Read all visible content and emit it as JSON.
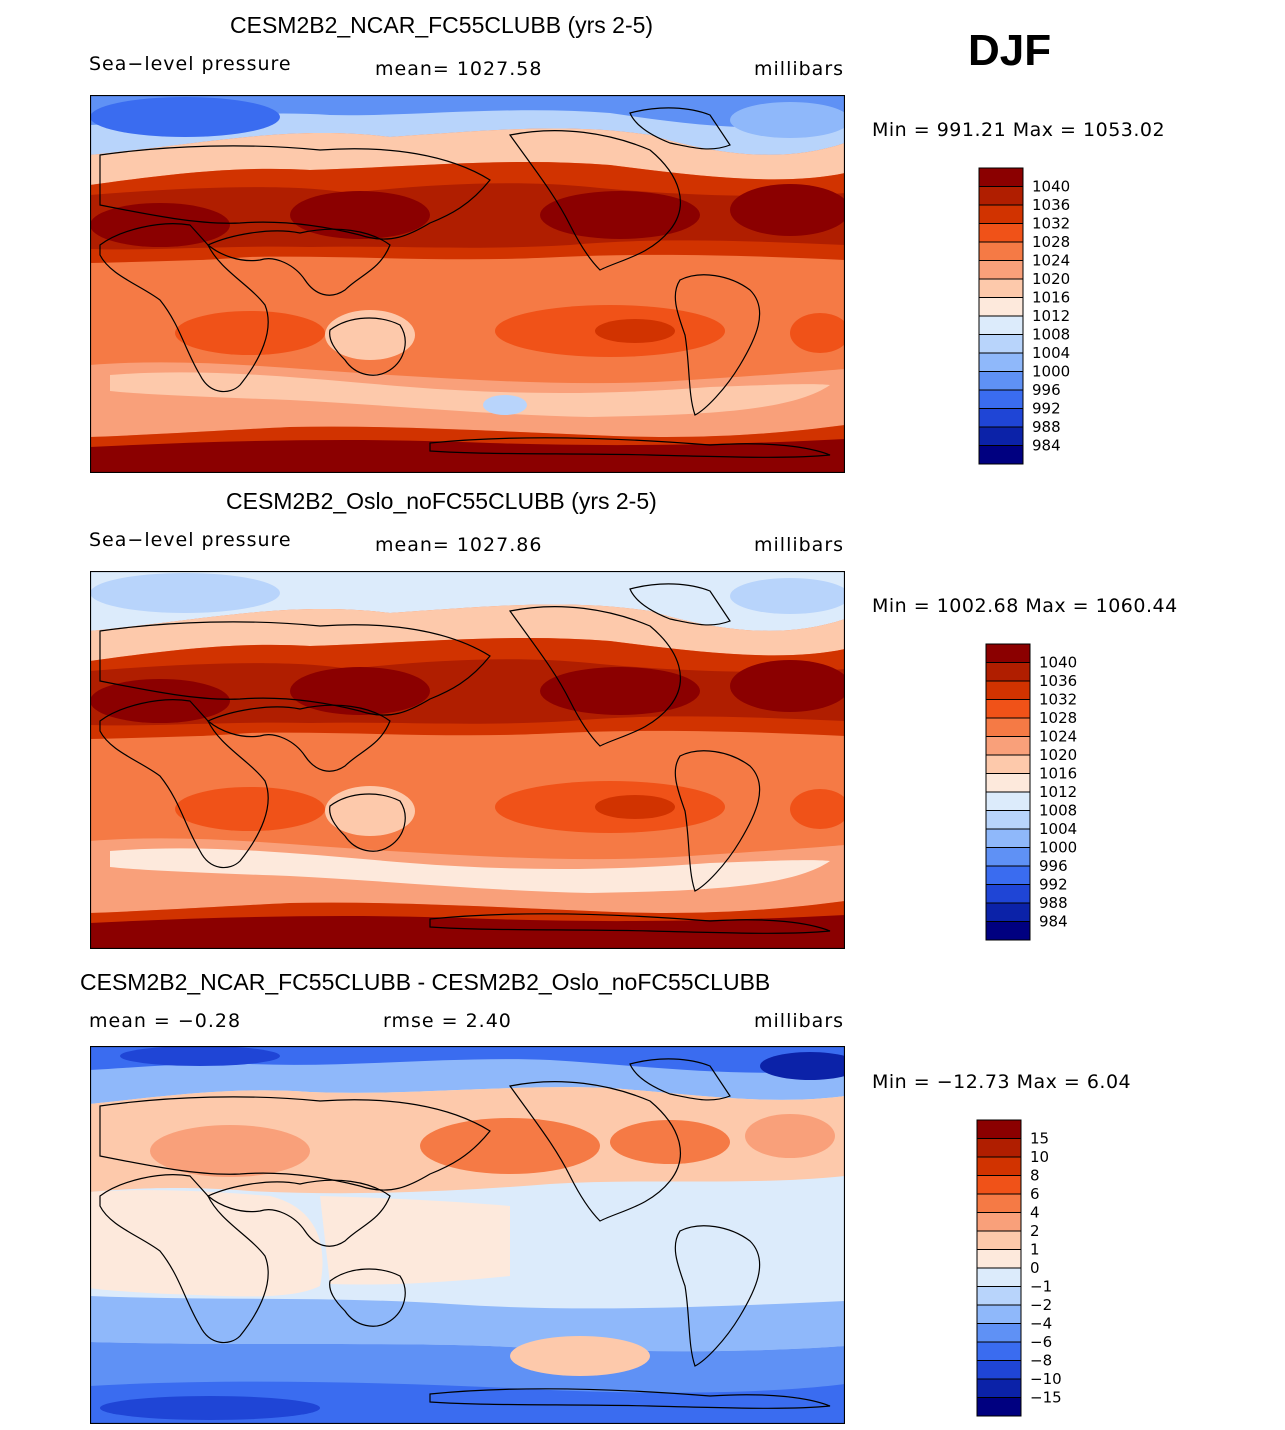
{
  "season": "DJF",
  "chart_data": [
    {
      "type": "heatmap",
      "title": "CESM2B2_NCAR_FC55CLUBB (yrs 2-5)",
      "variable": "Sea−level pressure",
      "mean_text": "mean=  1027.58",
      "units": "millibars",
      "minmax_text": "Min  =  991.21  Max  =  1053.02",
      "min": 991.21,
      "max": 1053.02,
      "mean": 1027.58,
      "colorbar_levels": [
        "1040",
        "1036",
        "1032",
        "1028",
        "1024",
        "1020",
        "1016",
        "1012",
        "1008",
        "1004",
        "1000",
        "996",
        "992",
        "988",
        "984"
      ]
    },
    {
      "type": "heatmap",
      "title": "CESM2B2_Oslo_noFC55CLUBB (yrs 2-5)",
      "variable": "Sea−level pressure",
      "mean_text": "mean=  1027.86",
      "units": "millibars",
      "minmax_text": "Min  =  1002.68  Max  =  1060.44",
      "min": 1002.68,
      "max": 1060.44,
      "mean": 1027.86,
      "colorbar_levels": [
        "1040",
        "1036",
        "1032",
        "1028",
        "1024",
        "1020",
        "1016",
        "1012",
        "1008",
        "1004",
        "1000",
        "996",
        "992",
        "988",
        "984"
      ]
    },
    {
      "type": "heatmap",
      "title": "CESM2B2_NCAR_FC55CLUBB - CESM2B2_Oslo_noFC55CLUBB",
      "mean_text": "mean =    −0.28",
      "rmse_text": "rmse =     2.40",
      "units": "millibars",
      "minmax_text": "Min  =  −12.73  Max  =     6.04",
      "min": -12.73,
      "max": 6.04,
      "mean": -0.28,
      "rmse": 2.4,
      "colorbar_levels": [
        "15",
        "10",
        "8",
        "6",
        "4",
        "2",
        "1",
        "0",
        "−1",
        "−2",
        "−4",
        "−6",
        "−8",
        "−10",
        "−15"
      ]
    }
  ],
  "palette": [
    "#8b0000",
    "#b01e00",
    "#d13300",
    "#f05218",
    "#f57a45",
    "#f9a07a",
    "#fdc9ab",
    "#fde9dc",
    "#dcebfb",
    "#b8d4fb",
    "#8fb8fa",
    "#5f91f5",
    "#3a6cf0",
    "#1f45d6",
    "#0b22a8",
    "#000080"
  ]
}
